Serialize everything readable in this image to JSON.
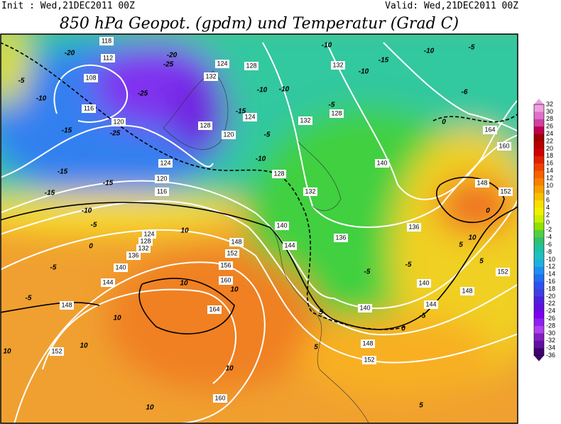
{
  "header": {
    "init": "Init : Wed,21DEC2011 00Z",
    "valid": "Valid: Wed,21DEC2011 00Z",
    "title": "850 hPa Geopot. (gpdm) und Temperatur (Grad C)"
  },
  "legend": {
    "labels": [
      32,
      30,
      28,
      26,
      24,
      22,
      20,
      18,
      16,
      14,
      12,
      10,
      8,
      6,
      4,
      2,
      0,
      -2,
      -4,
      -6,
      -8,
      -10,
      -12,
      -14,
      -16,
      -18,
      -20,
      -22,
      -24,
      -26,
      -28,
      -30,
      -32,
      -34,
      -36
    ],
    "colors": [
      "#f0a0e0",
      "#e070c8",
      "#d040a0",
      "#c00050",
      "#a00000",
      "#b80000",
      "#d00000",
      "#e02000",
      "#f04000",
      "#f86000",
      "#f88000",
      "#f8a000",
      "#f8c000",
      "#f8e000",
      "#f0f000",
      "#c8f000",
      "#90e000",
      "#50d040",
      "#30c070",
      "#20c0a0",
      "#20c0c0",
      "#20b0e0",
      "#2090f0",
      "#2070f0",
      "#3050f0",
      "#4040e0",
      "#5020e0",
      "#6010e0",
      "#8000f0",
      "#9020f0",
      "#b040f0",
      "#8020c0",
      "#6010a0",
      "#400070"
    ]
  },
  "map": {
    "geopotential_labels": [
      118,
      112,
      108,
      116,
      120,
      124,
      120,
      116,
      128,
      124,
      132,
      128,
      120,
      124,
      132,
      128,
      132,
      140,
      136,
      136,
      164,
      160,
      148,
      152,
      140,
      144,
      148,
      152,
      156,
      160,
      164,
      132,
      128,
      124,
      136,
      140,
      144,
      148,
      152,
      160,
      148,
      152,
      140,
      144,
      148,
      152,
      140,
      132,
      128
    ],
    "temperature_labels": [
      -20,
      -25,
      -20,
      -25,
      -25,
      -15,
      -10,
      -5,
      -15,
      -15,
      -15,
      -10,
      -5,
      0,
      -5,
      -5,
      10,
      10,
      10,
      10,
      10,
      10,
      10,
      10,
      5,
      5,
      5,
      0,
      -5,
      -5,
      -5,
      -10,
      -10,
      -5,
      -5,
      -10,
      -15,
      -10,
      -15,
      -10,
      -10,
      -5,
      -6,
      0,
      10,
      5,
      5,
      0
    ]
  }
}
